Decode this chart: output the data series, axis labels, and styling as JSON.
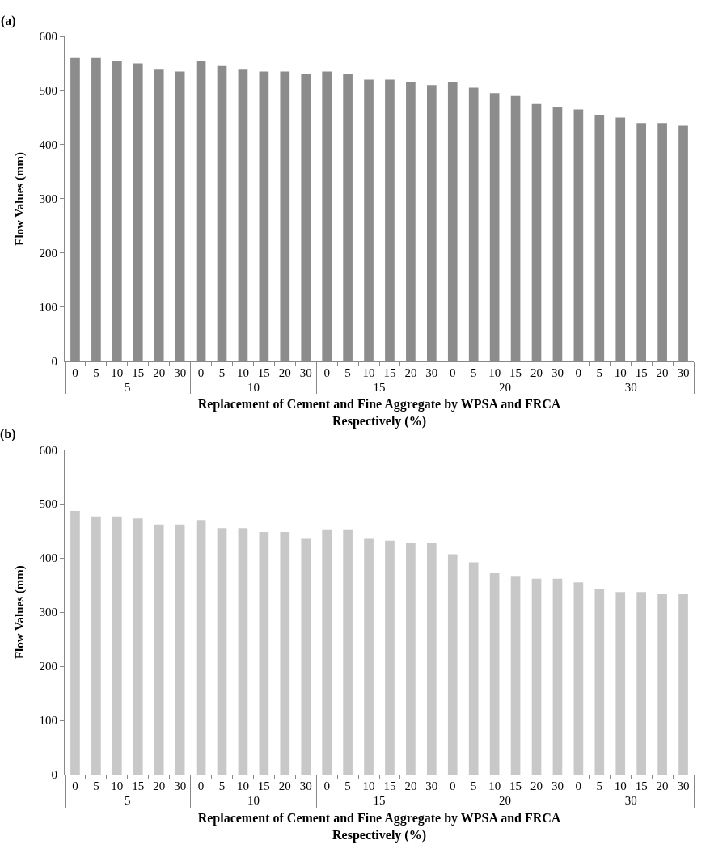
{
  "chart_data": [
    {
      "type": "bar",
      "title": "(a)",
      "xlabel": "Replacement of Cement and Fine Aggregate by WPSA and FRCA\nRespectively (%)",
      "ylabel": "Flow Values (mm)",
      "annotations": [
        "5",
        "10",
        "15",
        "20",
        "30"
      ],
      "categories": [
        "0",
        "5",
        "10",
        "15",
        "20",
        "30",
        "0",
        "5",
        "10",
        "15",
        "20",
        "30",
        "0",
        "5",
        "10",
        "15",
        "20",
        "30",
        "0",
        "5",
        "10",
        "15",
        "20",
        "30",
        "0",
        "5",
        "10",
        "15",
        "20",
        "30"
      ],
      "ylim": [
        0,
        600
      ],
      "yticks": [
        0,
        100,
        200,
        300,
        400,
        500,
        600
      ],
      "color": "#8c8c8c",
      "values": [
        560,
        560,
        555,
        550,
        540,
        535,
        555,
        545,
        540,
        535,
        535,
        530,
        535,
        530,
        520,
        520,
        515,
        510,
        515,
        505,
        495,
        490,
        475,
        470,
        465,
        455,
        450,
        440,
        440,
        435
      ]
    },
    {
      "type": "bar",
      "title": "(b)",
      "xlabel": "Replacement of Cement and Fine Aggregate by WPSA and FRCA\nRespectively (%)",
      "ylabel": "Flow Values (mm)",
      "annotations": [
        "5",
        "10",
        "15",
        "20",
        "30"
      ],
      "categories": [
        "0",
        "5",
        "10",
        "15",
        "20",
        "30",
        "0",
        "5",
        "10",
        "15",
        "20",
        "30",
        "0",
        "5",
        "10",
        "15",
        "20",
        "30",
        "0",
        "5",
        "10",
        "15",
        "20",
        "30",
        "0",
        "5",
        "10",
        "15",
        "20",
        "30"
      ],
      "ylim": [
        0,
        600
      ],
      "yticks": [
        0,
        100,
        200,
        300,
        400,
        500,
        600
      ],
      "color": "#c8c8c8",
      "values": [
        487,
        477,
        477,
        473,
        462,
        462,
        470,
        455,
        455,
        448,
        448,
        437,
        453,
        453,
        437,
        432,
        428,
        428,
        407,
        392,
        372,
        367,
        362,
        362,
        355,
        342,
        337,
        337,
        333,
        333
      ]
    }
  ]
}
